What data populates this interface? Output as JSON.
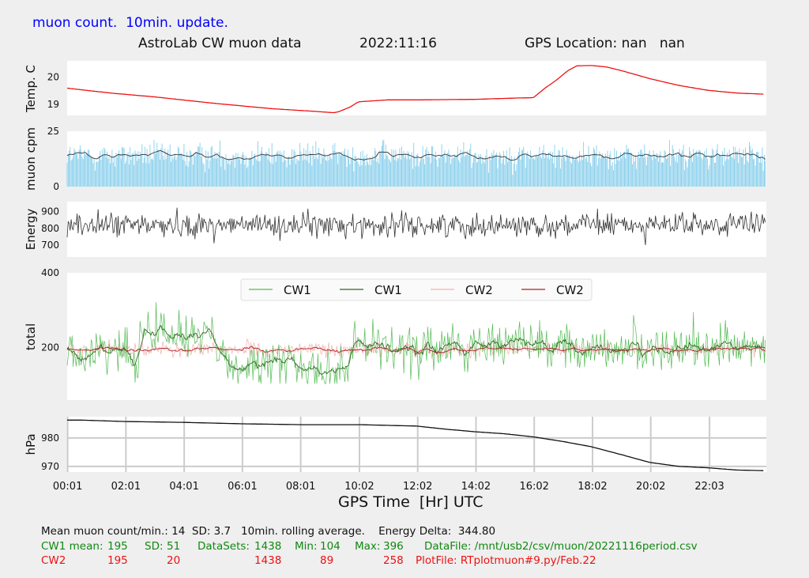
{
  "header": {
    "top_note": "muon count.  10min. update.",
    "title": "AstroLab CW muon data",
    "date": "2022:11:16",
    "gps": "GPS Location: nan   nan"
  },
  "chart_data": [
    {
      "type": "line",
      "ylabel": "Temp. C",
      "yticks": [
        19,
        20
      ],
      "ylim": [
        18.6,
        20.6
      ],
      "series": [
        {
          "color": "#ee1111",
          "x": [
            0.0,
            1.5,
            3.0,
            5.0,
            7.0,
            8.5,
            9.15,
            9.3,
            9.7,
            10.0,
            11.0,
            12.0,
            14.0,
            15.5,
            16.0,
            16.4,
            16.8,
            17.2,
            17.5,
            18.0,
            18.5,
            19.0,
            19.5,
            20.0,
            21.0,
            22.0,
            23.0,
            23.9
          ],
          "y": [
            19.6,
            19.42,
            19.28,
            19.05,
            18.85,
            18.75,
            18.7,
            18.73,
            18.9,
            19.1,
            19.17,
            19.17,
            19.19,
            19.24,
            19.25,
            19.6,
            19.9,
            20.25,
            20.42,
            20.43,
            20.38,
            20.25,
            20.1,
            19.95,
            19.7,
            19.52,
            19.42,
            19.38
          ]
        }
      ]
    },
    {
      "type": "bar",
      "ylabel": "muon cpm",
      "yticks": [
        0,
        25
      ],
      "ylim": [
        0,
        25
      ],
      "series": [
        {
          "color": "#87ceeb",
          "mean": 14,
          "sd": 3.7,
          "x_range": [
            0.0,
            24.0
          ]
        },
        {
          "color": "#333333",
          "rolling_average_of": 0,
          "mean": 14,
          "sd": 0.9
        }
      ]
    },
    {
      "type": "line",
      "ylabel": "Energy",
      "yticks": [
        700,
        800,
        900
      ],
      "ylim": [
        630,
        960
      ],
      "series": [
        {
          "color": "#333333",
          "mean": 820,
          "sd": 45,
          "x_range": [
            0.0,
            24.0
          ]
        }
      ]
    },
    {
      "type": "line",
      "ylabel": "total",
      "yticks": [
        200,
        400
      ],
      "ylim": [
        60,
        400
      ],
      "legend": {
        "placement": "top-center",
        "entries": [
          "CW1",
          "CW1",
          "CW2",
          "CW2"
        ]
      },
      "series": [
        {
          "name": "CW1",
          "color": "#55bb55",
          "style": "raw",
          "mean": 195,
          "sd": 51,
          "min": 104,
          "max": 396
        },
        {
          "name": "CW1",
          "color": "#336622",
          "style": "rolling"
        },
        {
          "name": "CW2",
          "color": "#f4b0b0",
          "style": "raw",
          "mean": 195,
          "sd": 20,
          "min": 89,
          "max": 258
        },
        {
          "name": "CW2",
          "color": "#aa2222",
          "style": "rolling"
        }
      ]
    },
    {
      "type": "line",
      "ylabel": "hPa",
      "yticks": [
        970,
        980
      ],
      "ylim": [
        968,
        987.5
      ],
      "grid": true,
      "series": [
        {
          "color": "#111111",
          "x": [
            0.0,
            0.5,
            2.0,
            4.0,
            6.0,
            8.0,
            10.0,
            12.0,
            13.0,
            14.0,
            15.0,
            16.0,
            17.0,
            18.0,
            19.0,
            20.0,
            21.0,
            22.0,
            23.0,
            23.9
          ],
          "y": [
            986.3,
            986.3,
            985.8,
            985.5,
            985.0,
            984.7,
            984.7,
            984.2,
            983.1,
            982.2,
            981.5,
            980.4,
            978.8,
            976.9,
            974.2,
            971.4,
            970.0,
            969.5,
            968.7,
            968.5
          ]
        }
      ]
    }
  ],
  "x_axis": {
    "label": "GPS Time  [Hr] UTC",
    "ticks": [
      {
        "hour": 0.0167,
        "label": "00:01"
      },
      {
        "hour": 2.0167,
        "label": "02:01"
      },
      {
        "hour": 4.0167,
        "label": "04:01"
      },
      {
        "hour": 6.0167,
        "label": "06:01"
      },
      {
        "hour": 8.0167,
        "label": "08:01"
      },
      {
        "hour": 10.033,
        "label": "10:02"
      },
      {
        "hour": 12.033,
        "label": "12:02"
      },
      {
        "hour": 14.033,
        "label": "14:02"
      },
      {
        "hour": 16.033,
        "label": "16:02"
      },
      {
        "hour": 18.033,
        "label": "18:02"
      },
      {
        "hour": 20.033,
        "label": "20:02"
      },
      {
        "hour": 22.05,
        "label": "22:03"
      }
    ],
    "range": [
      0,
      24
    ]
  },
  "footer": {
    "line1": "Mean muon count/min.: 14  SD: 3.7   10min. rolling average.    Energy Delta:  344.80",
    "cw1": {
      "label": "CW1 mean:",
      "mean": "195",
      "sd_label": "SD:",
      "sd": "51",
      "ds_label": "DataSets:",
      "ds": "1438",
      "min_label": "Min:",
      "min": "104",
      "max_label": "Max:",
      "max": "396",
      "file": "DataFile: /mnt/usb2/csv/muon/20221116period.csv"
    },
    "cw2": {
      "label": "CW2",
      "mean": "195",
      "sd": "20",
      "ds": "1438",
      "min": "89",
      "max": "258",
      "file": "PlotFile: RTplotmuon#9.py/Feb.22"
    }
  },
  "colors": {
    "background": "#efefef",
    "panel": "#ffffff",
    "grid": "#cccccc",
    "temp": "#ee1111",
    "muon_bars": "#87ceeb"
  }
}
